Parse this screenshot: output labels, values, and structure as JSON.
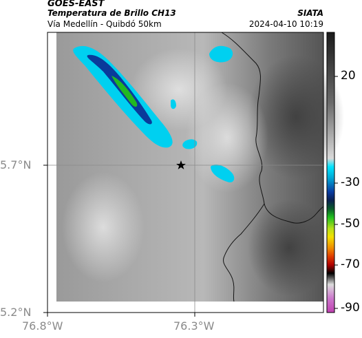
{
  "header": {
    "satellite": "GOES-EAST",
    "product": "Temperatura de Brillo CH13",
    "region": "Vía Medellín - Quibdó 50km",
    "agency": "SIATA",
    "datetime": "2024-04-10 10:19"
  },
  "axes": {
    "lat_ticks": [
      "5.7°N",
      "5.2°N"
    ],
    "lon_ticks": [
      "76.8°W",
      "76.3°W"
    ]
  },
  "colorbar": {
    "labels": [
      "20",
      "-30",
      "-50",
      "-70",
      "-90"
    ],
    "colors": [
      "#1a1a1a",
      "#555555",
      "#8f8f8f",
      "#c7c7c7",
      "#f2f2f2",
      "#00e5ff",
      "#00a8d6",
      "#0a3aa0",
      "#0a2050",
      "#0a5a2a",
      "#1fbf1f",
      "#b5e01a",
      "#f2e000",
      "#f08c00",
      "#e03c00",
      "#b00000",
      "#000000",
      "#dcdcdc",
      "#cc77cc",
      "#c040b0"
    ]
  },
  "map": {
    "marker": "star",
    "colors": {
      "land_dark": "#4f4f4f",
      "land_mid": "#8c8c8c",
      "land_light": "#c8c8c8",
      "cloud_cyan": "#00d0f0",
      "cloud_blue": "#0a3a9a",
      "cloud_green": "#22b822"
    }
  }
}
